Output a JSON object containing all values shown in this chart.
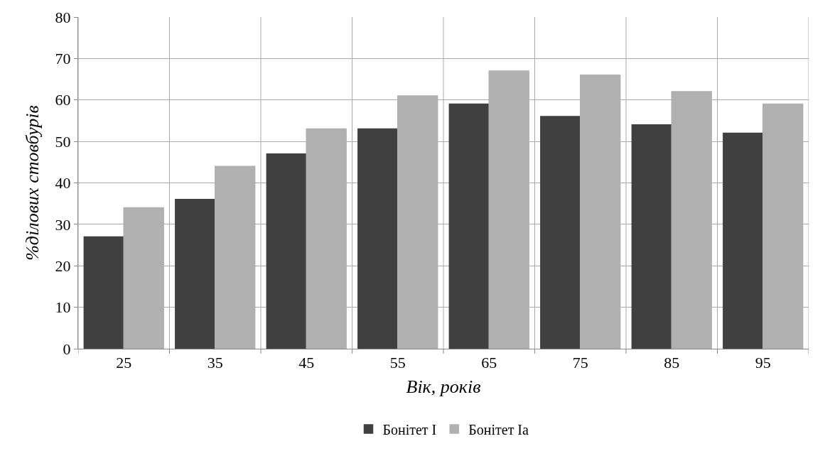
{
  "chart_data": {
    "type": "bar",
    "xlabel": "Вік, років",
    "ylabel": "%ділових стовбурів",
    "categories": [
      "25",
      "35",
      "45",
      "55",
      "65",
      "75",
      "85",
      "95"
    ],
    "series": [
      {
        "name": "Бонітет I",
        "color": "#404040",
        "values": [
          27,
          36,
          47,
          53,
          59,
          56,
          54,
          52
        ]
      },
      {
        "name": "Бонітет Ia",
        "color": "#b0b0b0",
        "values": [
          34,
          44,
          53,
          61,
          67,
          66,
          62,
          59
        ]
      }
    ],
    "ylim": [
      0,
      80
    ],
    "yticks": [
      0,
      10,
      20,
      30,
      40,
      50,
      60,
      70,
      80
    ],
    "grid": true,
    "legend": "bottom"
  }
}
